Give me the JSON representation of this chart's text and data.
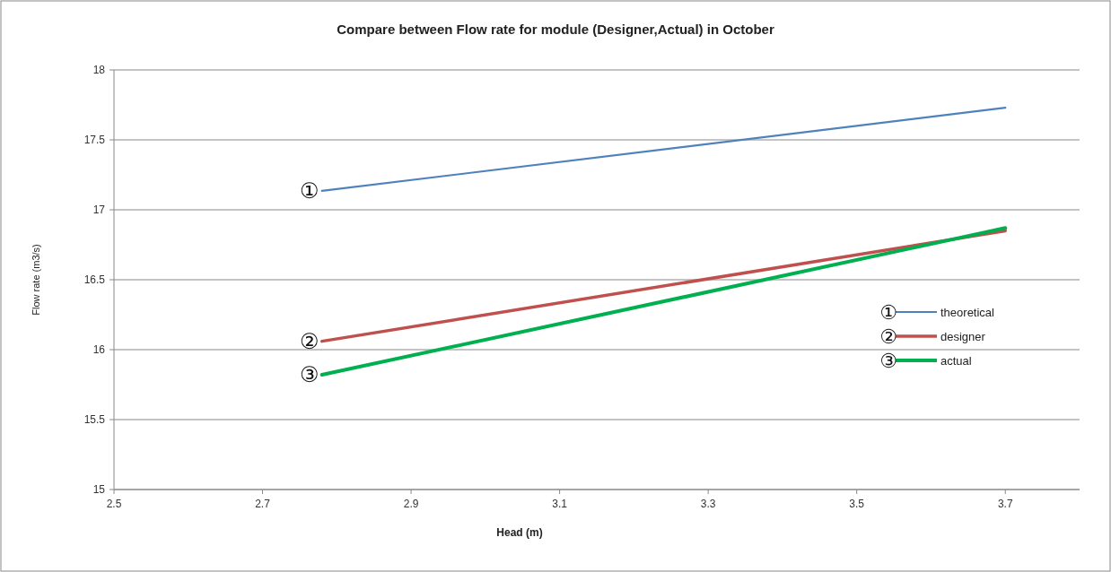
{
  "chart_data": {
    "type": "line",
    "title": "Compare between Flow rate  for module (Designer,Actual) in October",
    "xlabel": "Head (m)",
    "ylabel": "Flow rate (m3/s)",
    "x": [
      2.78,
      3.7
    ],
    "series": [
      {
        "name": "theoretical",
        "color": "#4f81bd",
        "values": [
          17.135,
          17.73
        ]
      },
      {
        "name": "designer",
        "color": "#c0504d",
        "values": [
          16.06,
          16.85
        ]
      },
      {
        "name": "actual",
        "color": "#00b050",
        "values": [
          15.82,
          16.87
        ]
      }
    ],
    "annotations": [
      "①",
      "②",
      "③"
    ],
    "xlim": [
      2.5,
      3.8
    ],
    "xticks": [
      2.5,
      2.7,
      2.9,
      3.1,
      3.3,
      3.5,
      3.7
    ],
    "ylim": [
      15,
      18
    ],
    "yticks": [
      15,
      15.5,
      16,
      16.5,
      17,
      17.5,
      18
    ],
    "grid": "y",
    "legend": "right",
    "marker": "none",
    "line_style": "solid"
  }
}
